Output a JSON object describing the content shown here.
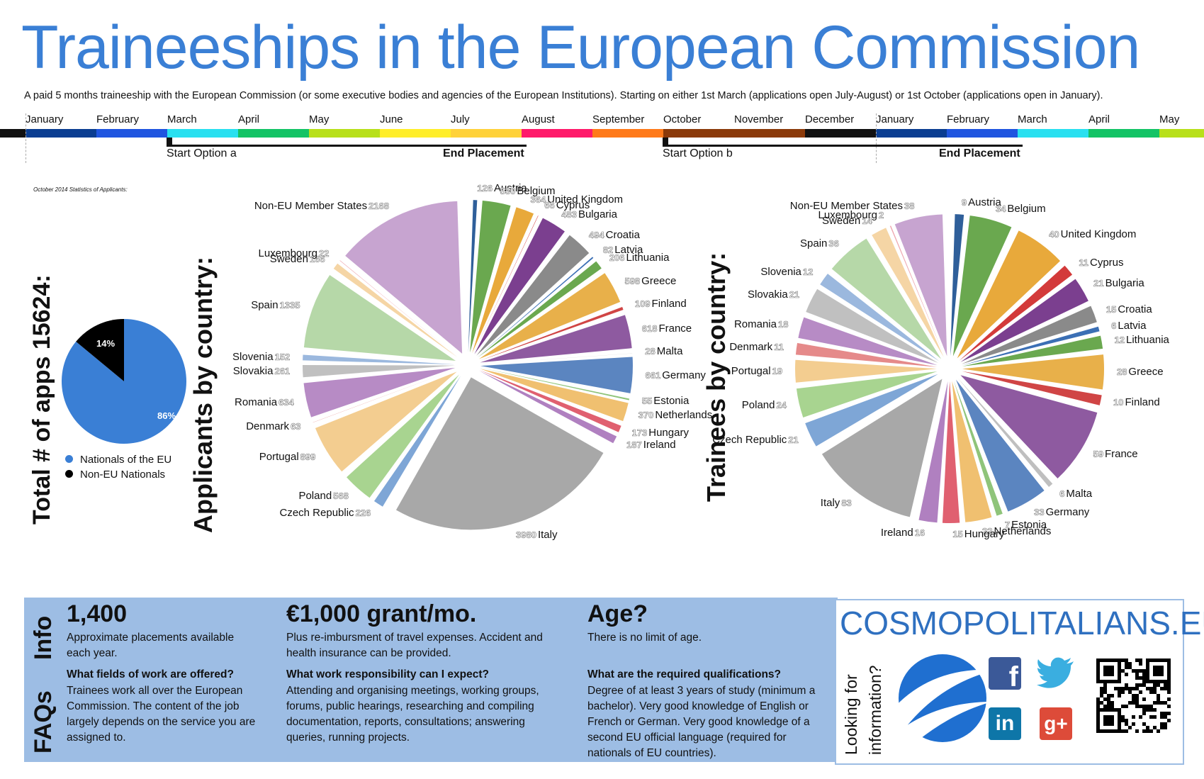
{
  "title": "Traineeships in the European Commission",
  "subtitle": "A paid 5 months traineeship with the European Commission (or some executive bodies and agencies of the European Institutions). Starting on either 1st March (applications open July-August) or 1st October (applications open in January).",
  "timeline": {
    "months": [
      {
        "label": "January",
        "color": "#0a3d91"
      },
      {
        "label": "February",
        "color": "#1f55e0"
      },
      {
        "label": "March",
        "color": "#29e0f0"
      },
      {
        "label": "April",
        "color": "#13c365"
      },
      {
        "label": "May",
        "color": "#b8e01a"
      },
      {
        "label": "June",
        "color": "#ffee2a"
      },
      {
        "label": "July",
        "color": "#ffd23a"
      },
      {
        "label": "August",
        "color": "#ff1a6a"
      },
      {
        "label": "September",
        "color": "#ff7a1a"
      },
      {
        "label": "October",
        "color": "#8b3a0a"
      },
      {
        "label": "November",
        "color": "#8b3a0a"
      },
      {
        "label": "December",
        "color": "#111111"
      },
      {
        "label": "January",
        "color": "#0a3d91"
      },
      {
        "label": "February",
        "color": "#1f55e0"
      },
      {
        "label": "March",
        "color": "#29e0f0"
      },
      {
        "label": "April",
        "color": "#13c365"
      },
      {
        "label": "May",
        "color": "#b8e01a"
      }
    ],
    "start_a": "Start Option a",
    "end_a": "End Placement",
    "start_b": "Start Option b",
    "end_b": "End Placement"
  },
  "stats_note": "October 2014 Statistics of Applicants:",
  "total": {
    "heading": "Total # of apps 15624:",
    "pie": [
      {
        "label": "Nationals of the EU",
        "pct": "86%",
        "value": 86,
        "color": "#3a7fd5"
      },
      {
        "label": "Non-EU Nationals",
        "pct": "14%",
        "value": 14,
        "color": "#000000"
      }
    ]
  },
  "applicants": {
    "heading": "Applicants by country:",
    "slices": [
      {
        "name": "Austria",
        "value": 126
      },
      {
        "name": "Belgium",
        "value": 530
      },
      {
        "name": "United Kingdom",
        "value": 364
      },
      {
        "name": "Cyprus",
        "value": 66
      },
      {
        "name": "Bulgaria",
        "value": 483
      },
      {
        "name": "Croatia",
        "value": 494
      },
      {
        "name": "Latvia",
        "value": 82
      },
      {
        "name": "Lithuania",
        "value": 206
      },
      {
        "name": "Greece",
        "value": 598
      },
      {
        "name": "Finland",
        "value": 109
      },
      {
        "name": "France",
        "value": 618
      },
      {
        "name": "Malta",
        "value": 28
      },
      {
        "name": "Germany",
        "value": 661
      },
      {
        "name": "Estonia",
        "value": 55
      },
      {
        "name": "Netherlands",
        "value": 370
      },
      {
        "name": "Hungary",
        "value": 173
      },
      {
        "name": "Ireland",
        "value": 187
      },
      {
        "name": "Italy",
        "value": 3980
      },
      {
        "name": "Czech Republic",
        "value": 226
      },
      {
        "name": "Poland",
        "value": 568
      },
      {
        "name": "Portugal",
        "value": 899
      },
      {
        "name": "Denmark",
        "value": 63
      },
      {
        "name": "Romania",
        "value": 634
      },
      {
        "name": "Slovakia",
        "value": 261
      },
      {
        "name": "Slovenia",
        "value": 152
      },
      {
        "name": "Spain",
        "value": 1335
      },
      {
        "name": "Sweden",
        "value": 166
      },
      {
        "name": "Luxembourg",
        "value": 22
      },
      {
        "name": "Non-EU Member States",
        "value": 2168
      }
    ]
  },
  "trainees": {
    "heading": "Trainees by country:",
    "slices": [
      {
        "name": "Austria",
        "value": 9
      },
      {
        "name": "Belgium",
        "value": 34
      },
      {
        "name": "United Kingdom",
        "value": 40
      },
      {
        "name": "Cyprus",
        "value": 11
      },
      {
        "name": "Bulgaria",
        "value": 21
      },
      {
        "name": "Croatia",
        "value": 15
      },
      {
        "name": "Latvia",
        "value": 6
      },
      {
        "name": "Lithuania",
        "value": 12
      },
      {
        "name": "Greece",
        "value": 28
      },
      {
        "name": "Finland",
        "value": 10
      },
      {
        "name": "France",
        "value": 59
      },
      {
        "name": "Malta",
        "value": 6
      },
      {
        "name": "Germany",
        "value": 33
      },
      {
        "name": "Estonia",
        "value": 7
      },
      {
        "name": "Netherlands",
        "value": 22
      },
      {
        "name": "Hungary",
        "value": 15
      },
      {
        "name": "Ireland",
        "value": 16
      },
      {
        "name": "Italy",
        "value": 83
      },
      {
        "name": "Czech Republic",
        "value": 21
      },
      {
        "name": "Poland",
        "value": 24
      },
      {
        "name": "Portugal",
        "value": 19
      },
      {
        "name": "Denmark",
        "value": 11
      },
      {
        "name": "Romania",
        "value": 18
      },
      {
        "name": "Slovakia",
        "value": 21
      },
      {
        "name": "Slovenia",
        "value": 12
      },
      {
        "name": "Spain",
        "value": 36
      },
      {
        "name": "Sweden",
        "value": 14
      },
      {
        "name": "Luxembourg",
        "value": 2
      },
      {
        "name": "Non-EU Member States",
        "value": 38
      }
    ]
  },
  "slice_colors": [
    "#2f5f9a",
    "#6aa84f",
    "#e8a93b",
    "#d33a3a",
    "#7b3f8f",
    "#8a8a8a",
    "#3b6fb5",
    "#6aa84f",
    "#e8b04a",
    "#d04545",
    "#8e5aa0",
    "#bfbfbf",
    "#5b85c0",
    "#8fc47a",
    "#f0c070",
    "#e06070",
    "#b080c0",
    "#a8a8a8",
    "#7ea6d6",
    "#a8d490",
    "#f3cd90",
    "#e58a8a",
    "#b78bc5",
    "#c0c0c0",
    "#9bb8de",
    "#b6d8a8",
    "#f5d5a5",
    "#eea7b0",
    "#c7a4d0"
  ],
  "faq": {
    "info_tag": "Info",
    "faqs_tag": "FAQs",
    "col1": {
      "big": "1,400",
      "text": "Approximate placements available each year.",
      "q": "What fields of work are offered?",
      "a": "Trainees work all over the European Commission. The content of the job largely depends on the service you are assigned to."
    },
    "col2": {
      "big": "€1,000 grant/mo.",
      "text": "Plus re-imbursment of travel expenses. Accident and health insurance can be provided.",
      "q": "What work responsibility can I expect?",
      "a": "Attending and organising meetings, working groups, forums, public hearings, researching and compiling documentation, reports, consultations; answering queries, running projects."
    },
    "col3": {
      "big": "Age?",
      "text": "There is no limit of age.",
      "q": "What are the required qualifications?",
      "a": "Degree of at least 3 years of study (minimum a bachelor). Very good knowledge of English or French or German. Very good knowledge of a second EU official language (required for nationals of EU countries)."
    }
  },
  "brand": {
    "name": "COSMOPOLITALIANS.EU",
    "looking": "Looking for",
    "information": "information?",
    "colors": {
      "facebook": "#3b5998",
      "twitter": "#3aaee0",
      "linkedin": "#0e76a8",
      "gplus": "#dd4b39"
    }
  }
}
